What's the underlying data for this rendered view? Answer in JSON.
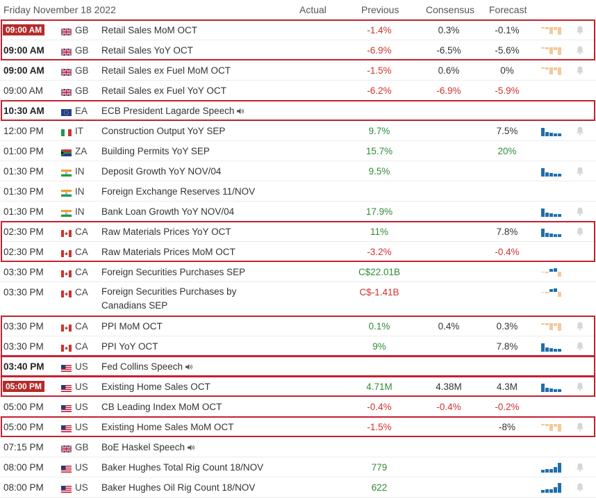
{
  "header": {
    "date": "Friday November 18 2022",
    "actual": "Actual",
    "previous": "Previous",
    "consensus": "Consensus",
    "forecast": "Forecast"
  },
  "colors": {
    "highlight": "#c5202f",
    "negative": "#d0312d",
    "positive": "#2e8b36",
    "badge": "#b52a2a",
    "spark_blue": "#1e6fb0",
    "spark_peach": "#f5c99a"
  },
  "rows": [
    {
      "time": "09:00 AM",
      "style": "badge",
      "country": "GB",
      "flag": "uk",
      "event": "Retail Sales MoM OCT",
      "speech": false,
      "actual": "",
      "previous": "-1.4%",
      "previous_color": "red",
      "consensus": "0.3%",
      "consensus_color": "black",
      "forecast": "-0.1%",
      "forecast_color": "black",
      "spark": "peach",
      "bell": true
    },
    {
      "time": "09:00 AM",
      "style": "bold",
      "country": "GB",
      "flag": "uk",
      "event": "Retail Sales YoY OCT",
      "speech": false,
      "actual": "",
      "previous": "-6.9%",
      "previous_color": "red",
      "consensus": "-6.5%",
      "consensus_color": "black",
      "forecast": "-5.6%",
      "forecast_color": "black",
      "spark": "peach",
      "bell": true
    },
    {
      "time": "09:00 AM",
      "style": "bold",
      "country": "GB",
      "flag": "uk",
      "event": "Retail Sales ex Fuel MoM OCT",
      "speech": false,
      "actual": "",
      "previous": "-1.5%",
      "previous_color": "red",
      "consensus": "0.6%",
      "consensus_color": "black",
      "forecast": "0%",
      "forecast_color": "black",
      "spark": "peach",
      "bell": true
    },
    {
      "time": "09:00 AM",
      "style": "normal",
      "country": "GB",
      "flag": "uk",
      "event": "Retail Sales ex Fuel YoY OCT",
      "speech": false,
      "actual": "",
      "previous": "-6.2%",
      "previous_color": "red",
      "consensus": "-6.9%",
      "consensus_color": "red",
      "forecast": "-5.9%",
      "forecast_color": "red",
      "spark": "",
      "bell": false
    },
    {
      "time": "10:30 AM",
      "style": "bold",
      "country": "EA",
      "flag": "eu",
      "event": "ECB President Lagarde Speech",
      "speech": true,
      "actual": "",
      "previous": "",
      "previous_color": "black",
      "consensus": "",
      "consensus_color": "black",
      "forecast": "",
      "forecast_color": "black",
      "spark": "",
      "bell": false
    },
    {
      "time": "12:00 PM",
      "style": "normal",
      "country": "IT",
      "flag": "it",
      "event": "Construction Output YoY SEP",
      "speech": false,
      "actual": "",
      "previous": "9.7%",
      "previous_color": "green",
      "consensus": "",
      "consensus_color": "black",
      "forecast": "7.5%",
      "forecast_color": "black",
      "spark": "blue",
      "bell": true
    },
    {
      "time": "01:00 PM",
      "style": "normal",
      "country": "ZA",
      "flag": "za",
      "event": "Building Permits YoY SEP",
      "speech": false,
      "actual": "",
      "previous": "15.7%",
      "previous_color": "green",
      "consensus": "",
      "consensus_color": "black",
      "forecast": "20%",
      "forecast_color": "green",
      "spark": "",
      "bell": false
    },
    {
      "time": "01:30 PM",
      "style": "normal",
      "country": "IN",
      "flag": "in",
      "event": "Deposit Growth YoY NOV/04",
      "speech": false,
      "actual": "",
      "previous": "9.5%",
      "previous_color": "green",
      "consensus": "",
      "consensus_color": "black",
      "forecast": "",
      "forecast_color": "black",
      "spark": "blue",
      "bell": true
    },
    {
      "time": "01:30 PM",
      "style": "normal",
      "country": "IN",
      "flag": "in",
      "event": "Foreign Exchange Reserves 11/NOV",
      "speech": false,
      "actual": "",
      "previous": "",
      "previous_color": "black",
      "consensus": "",
      "consensus_color": "black",
      "forecast": "",
      "forecast_color": "black",
      "spark": "",
      "bell": false
    },
    {
      "time": "01:30 PM",
      "style": "normal",
      "country": "IN",
      "flag": "in",
      "event": "Bank Loan Growth YoY NOV/04",
      "speech": false,
      "actual": "",
      "previous": "17.9%",
      "previous_color": "green",
      "consensus": "",
      "consensus_color": "black",
      "forecast": "",
      "forecast_color": "black",
      "spark": "blue",
      "bell": true
    },
    {
      "time": "02:30 PM",
      "style": "normal",
      "country": "CA",
      "flag": "ca",
      "event": "Raw Materials Prices YoY OCT",
      "speech": false,
      "actual": "",
      "previous": "11%",
      "previous_color": "green",
      "consensus": "",
      "consensus_color": "black",
      "forecast": "7.8%",
      "forecast_color": "black",
      "spark": "blue",
      "bell": true
    },
    {
      "time": "02:30 PM",
      "style": "normal",
      "country": "CA",
      "flag": "ca",
      "event": "Raw Materials Prices MoM OCT",
      "speech": false,
      "actual": "",
      "previous": "-3.2%",
      "previous_color": "red",
      "consensus": "",
      "consensus_color": "black",
      "forecast": "-0.4%",
      "forecast_color": "red",
      "spark": "",
      "bell": false
    },
    {
      "time": "03:30 PM",
      "style": "normal",
      "country": "CA",
      "flag": "ca",
      "event": "Foreign Securities Purchases SEP",
      "speech": false,
      "actual": "",
      "previous": "C$22.01B",
      "previous_color": "green",
      "consensus": "",
      "consensus_color": "black",
      "forecast": "",
      "forecast_color": "black",
      "spark": "mixed",
      "bell": false
    },
    {
      "time": "03:30 PM",
      "style": "normal",
      "country": "CA",
      "flag": "ca",
      "event": "Foreign Securities Purchases by",
      "event2": "Canadians SEP",
      "speech": false,
      "actual": "",
      "previous": "C$-1.41B",
      "previous_color": "red",
      "consensus": "",
      "consensus_color": "black",
      "forecast": "",
      "forecast_color": "black",
      "spark": "mixed",
      "bell": false
    },
    {
      "time": "03:30 PM",
      "style": "normal",
      "country": "CA",
      "flag": "ca",
      "event": "PPI MoM OCT",
      "speech": false,
      "actual": "",
      "previous": "0.1%",
      "previous_color": "green",
      "consensus": "0.4%",
      "consensus_color": "black",
      "forecast": "0.3%",
      "forecast_color": "black",
      "spark": "peach",
      "bell": true
    },
    {
      "time": "03:30 PM",
      "style": "normal",
      "country": "CA",
      "flag": "ca",
      "event": "PPI YoY OCT",
      "speech": false,
      "actual": "",
      "previous": "9%",
      "previous_color": "green",
      "consensus": "",
      "consensus_color": "black",
      "forecast": "7.8%",
      "forecast_color": "black",
      "spark": "blue",
      "bell": true
    },
    {
      "time": "03:40 PM",
      "style": "bold",
      "country": "US",
      "flag": "us",
      "event": "Fed Collins Speech",
      "speech": true,
      "actual": "",
      "previous": "",
      "previous_color": "black",
      "consensus": "",
      "consensus_color": "black",
      "forecast": "",
      "forecast_color": "black",
      "spark": "",
      "bell": false
    },
    {
      "time": "05:00 PM",
      "style": "badge",
      "country": "US",
      "flag": "us",
      "event": "Existing Home Sales OCT",
      "speech": false,
      "actual": "",
      "previous": "4.71M",
      "previous_color": "green",
      "consensus": "4.38M",
      "consensus_color": "black",
      "forecast": "4.3M",
      "forecast_color": "black",
      "spark": "blue",
      "bell": true
    },
    {
      "time": "05:00 PM",
      "style": "normal",
      "country": "US",
      "flag": "us",
      "event": "CB Leading Index MoM OCT",
      "speech": false,
      "actual": "",
      "previous": "-0.4%",
      "previous_color": "red",
      "consensus": "-0.4%",
      "consensus_color": "red",
      "forecast": "-0.2%",
      "forecast_color": "red",
      "spark": "",
      "bell": false
    },
    {
      "time": "05:00 PM",
      "style": "normal",
      "country": "US",
      "flag": "us",
      "event": "Existing Home Sales MoM OCT",
      "speech": false,
      "actual": "",
      "previous": "-1.5%",
      "previous_color": "red",
      "consensus": "",
      "consensus_color": "black",
      "forecast": "-8%",
      "forecast_color": "black",
      "spark": "peach",
      "bell": true
    },
    {
      "time": "07:15 PM",
      "style": "normal",
      "country": "GB",
      "flag": "uk",
      "event": "BoE Haskel Speech",
      "speech": true,
      "actual": "",
      "previous": "",
      "previous_color": "black",
      "consensus": "",
      "consensus_color": "black",
      "forecast": "",
      "forecast_color": "black",
      "spark": "",
      "bell": false
    },
    {
      "time": "08:00 PM",
      "style": "normal",
      "country": "US",
      "flag": "us",
      "event": "Baker Hughes Total Rig Count 18/NOV",
      "speech": false,
      "actual": "",
      "previous": "779",
      "previous_color": "green",
      "consensus": "",
      "consensus_color": "black",
      "forecast": "",
      "forecast_color": "black",
      "spark": "blue-rise",
      "bell": true
    },
    {
      "time": "08:00 PM",
      "style": "normal",
      "country": "US",
      "flag": "us",
      "event": "Baker Hughes Oil Rig Count 18/NOV",
      "speech": false,
      "actual": "",
      "previous": "622",
      "previous_color": "green",
      "consensus": "",
      "consensus_color": "black",
      "forecast": "",
      "forecast_color": "black",
      "spark": "blue-rise",
      "bell": true
    }
  ]
}
